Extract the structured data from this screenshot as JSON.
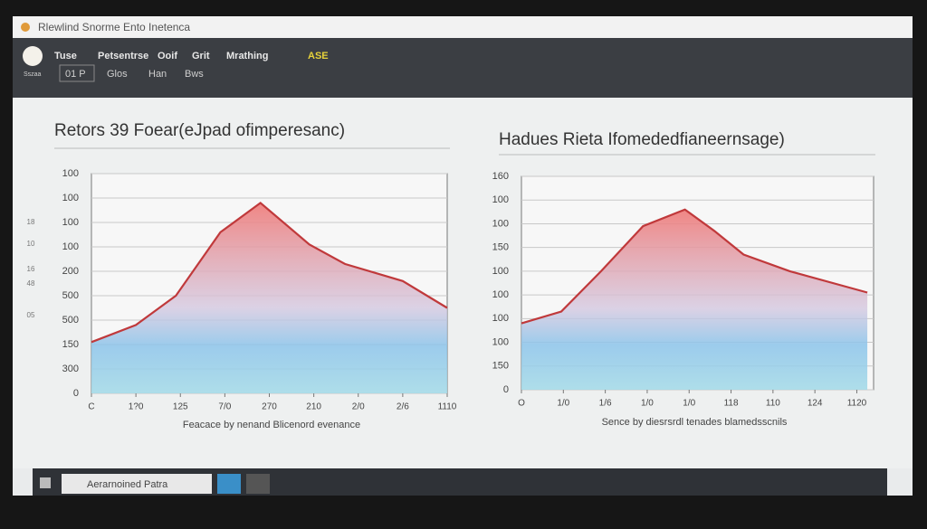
{
  "window": {
    "title": "Rlewlind Snorme  Ento Inetenca",
    "menu": [
      "Tuse",
      "Petsentrse",
      "Ooif",
      "Grit",
      "Mrathing",
      "ASE"
    ],
    "toolbar": [
      "Sszaa",
      "01 P",
      "Glos",
      "Han",
      "Bws"
    ],
    "side_labels": [
      "18",
      "10",
      "16",
      "48",
      "05"
    ],
    "taskbar": "Aerarnoined Patra"
  },
  "chart_data": [
    {
      "type": "area",
      "title": "Retors 39 Foear(eJpad ofimperesanc)",
      "x_label": "Feacace by nenand Blicenord evenance",
      "xlim": [
        0,
        8
      ],
      "ylim": [
        0,
        9
      ],
      "grid": true,
      "xticks": [
        {
          "value": 0,
          "label": "C"
        },
        {
          "value": 1,
          "label": "1?0"
        },
        {
          "value": 2,
          "label": "125"
        },
        {
          "value": 3,
          "label": "7/0"
        },
        {
          "value": 4,
          "label": "270"
        },
        {
          "value": 5,
          "label": "210"
        },
        {
          "value": 6,
          "label": "2/0"
        },
        {
          "value": 7,
          "label": "2/6"
        },
        {
          "value": 8,
          "label": "1110"
        }
      ],
      "yticks": [
        {
          "value": 0,
          "label": "0"
        },
        {
          "value": 1,
          "label": "300"
        },
        {
          "value": 2,
          "label": "150"
        },
        {
          "value": 3,
          "label": "500"
        },
        {
          "value": 4,
          "label": "500"
        },
        {
          "value": 5,
          "label": "200"
        },
        {
          "value": 6,
          "label": "100"
        },
        {
          "value": 7,
          "label": "100"
        },
        {
          "value": 8,
          "label": "100"
        },
        {
          "value": 9,
          "label": "100"
        }
      ],
      "series": [
        {
          "color": "#c0393b",
          "x": [
            0,
            1,
            1.9,
            2.9,
            3.8,
            4.9,
            5.7,
            7,
            8
          ],
          "values": [
            2.1,
            2.8,
            4.0,
            6.6,
            7.8,
            6.1,
            5.3,
            4.6,
            3.5
          ]
        }
      ]
    },
    {
      "type": "area",
      "title": "Hadues Rieta Ifomededfianeernsage)",
      "x_label": "Sence by diesrsrdl tenades blamedsscnils",
      "xlim": [
        0,
        8.4
      ],
      "ylim": [
        0,
        9
      ],
      "grid": true,
      "xticks": [
        {
          "value": 0,
          "label": "O"
        },
        {
          "value": 1,
          "label": "1/0"
        },
        {
          "value": 2,
          "label": "1/6"
        },
        {
          "value": 3,
          "label": "1/0"
        },
        {
          "value": 4,
          "label": "1/0"
        },
        {
          "value": 5,
          "label": "118"
        },
        {
          "value": 6,
          "label": "110"
        },
        {
          "value": 7,
          "label": "124"
        },
        {
          "value": 8,
          "label": "1120"
        }
      ],
      "yticks": [
        {
          "value": 0,
          "label": "0"
        },
        {
          "value": 1,
          "label": "150"
        },
        {
          "value": 2,
          "label": "100"
        },
        {
          "value": 3,
          "label": "100"
        },
        {
          "value": 4,
          "label": "100"
        },
        {
          "value": 5,
          "label": "100"
        },
        {
          "value": 6,
          "label": "150"
        },
        {
          "value": 7,
          "label": "100"
        },
        {
          "value": 8,
          "label": "100"
        },
        {
          "value": 9,
          "label": "160"
        }
      ],
      "series": [
        {
          "color": "#c0393b",
          "x": [
            0,
            0.95,
            1.9,
            2.9,
            3.9,
            4.6,
            5.3,
            6.4,
            8.25
          ],
          "values": [
            2.8,
            3.3,
            5.0,
            6.9,
            7.6,
            6.7,
            5.7,
            5.0,
            4.1
          ]
        }
      ]
    }
  ]
}
